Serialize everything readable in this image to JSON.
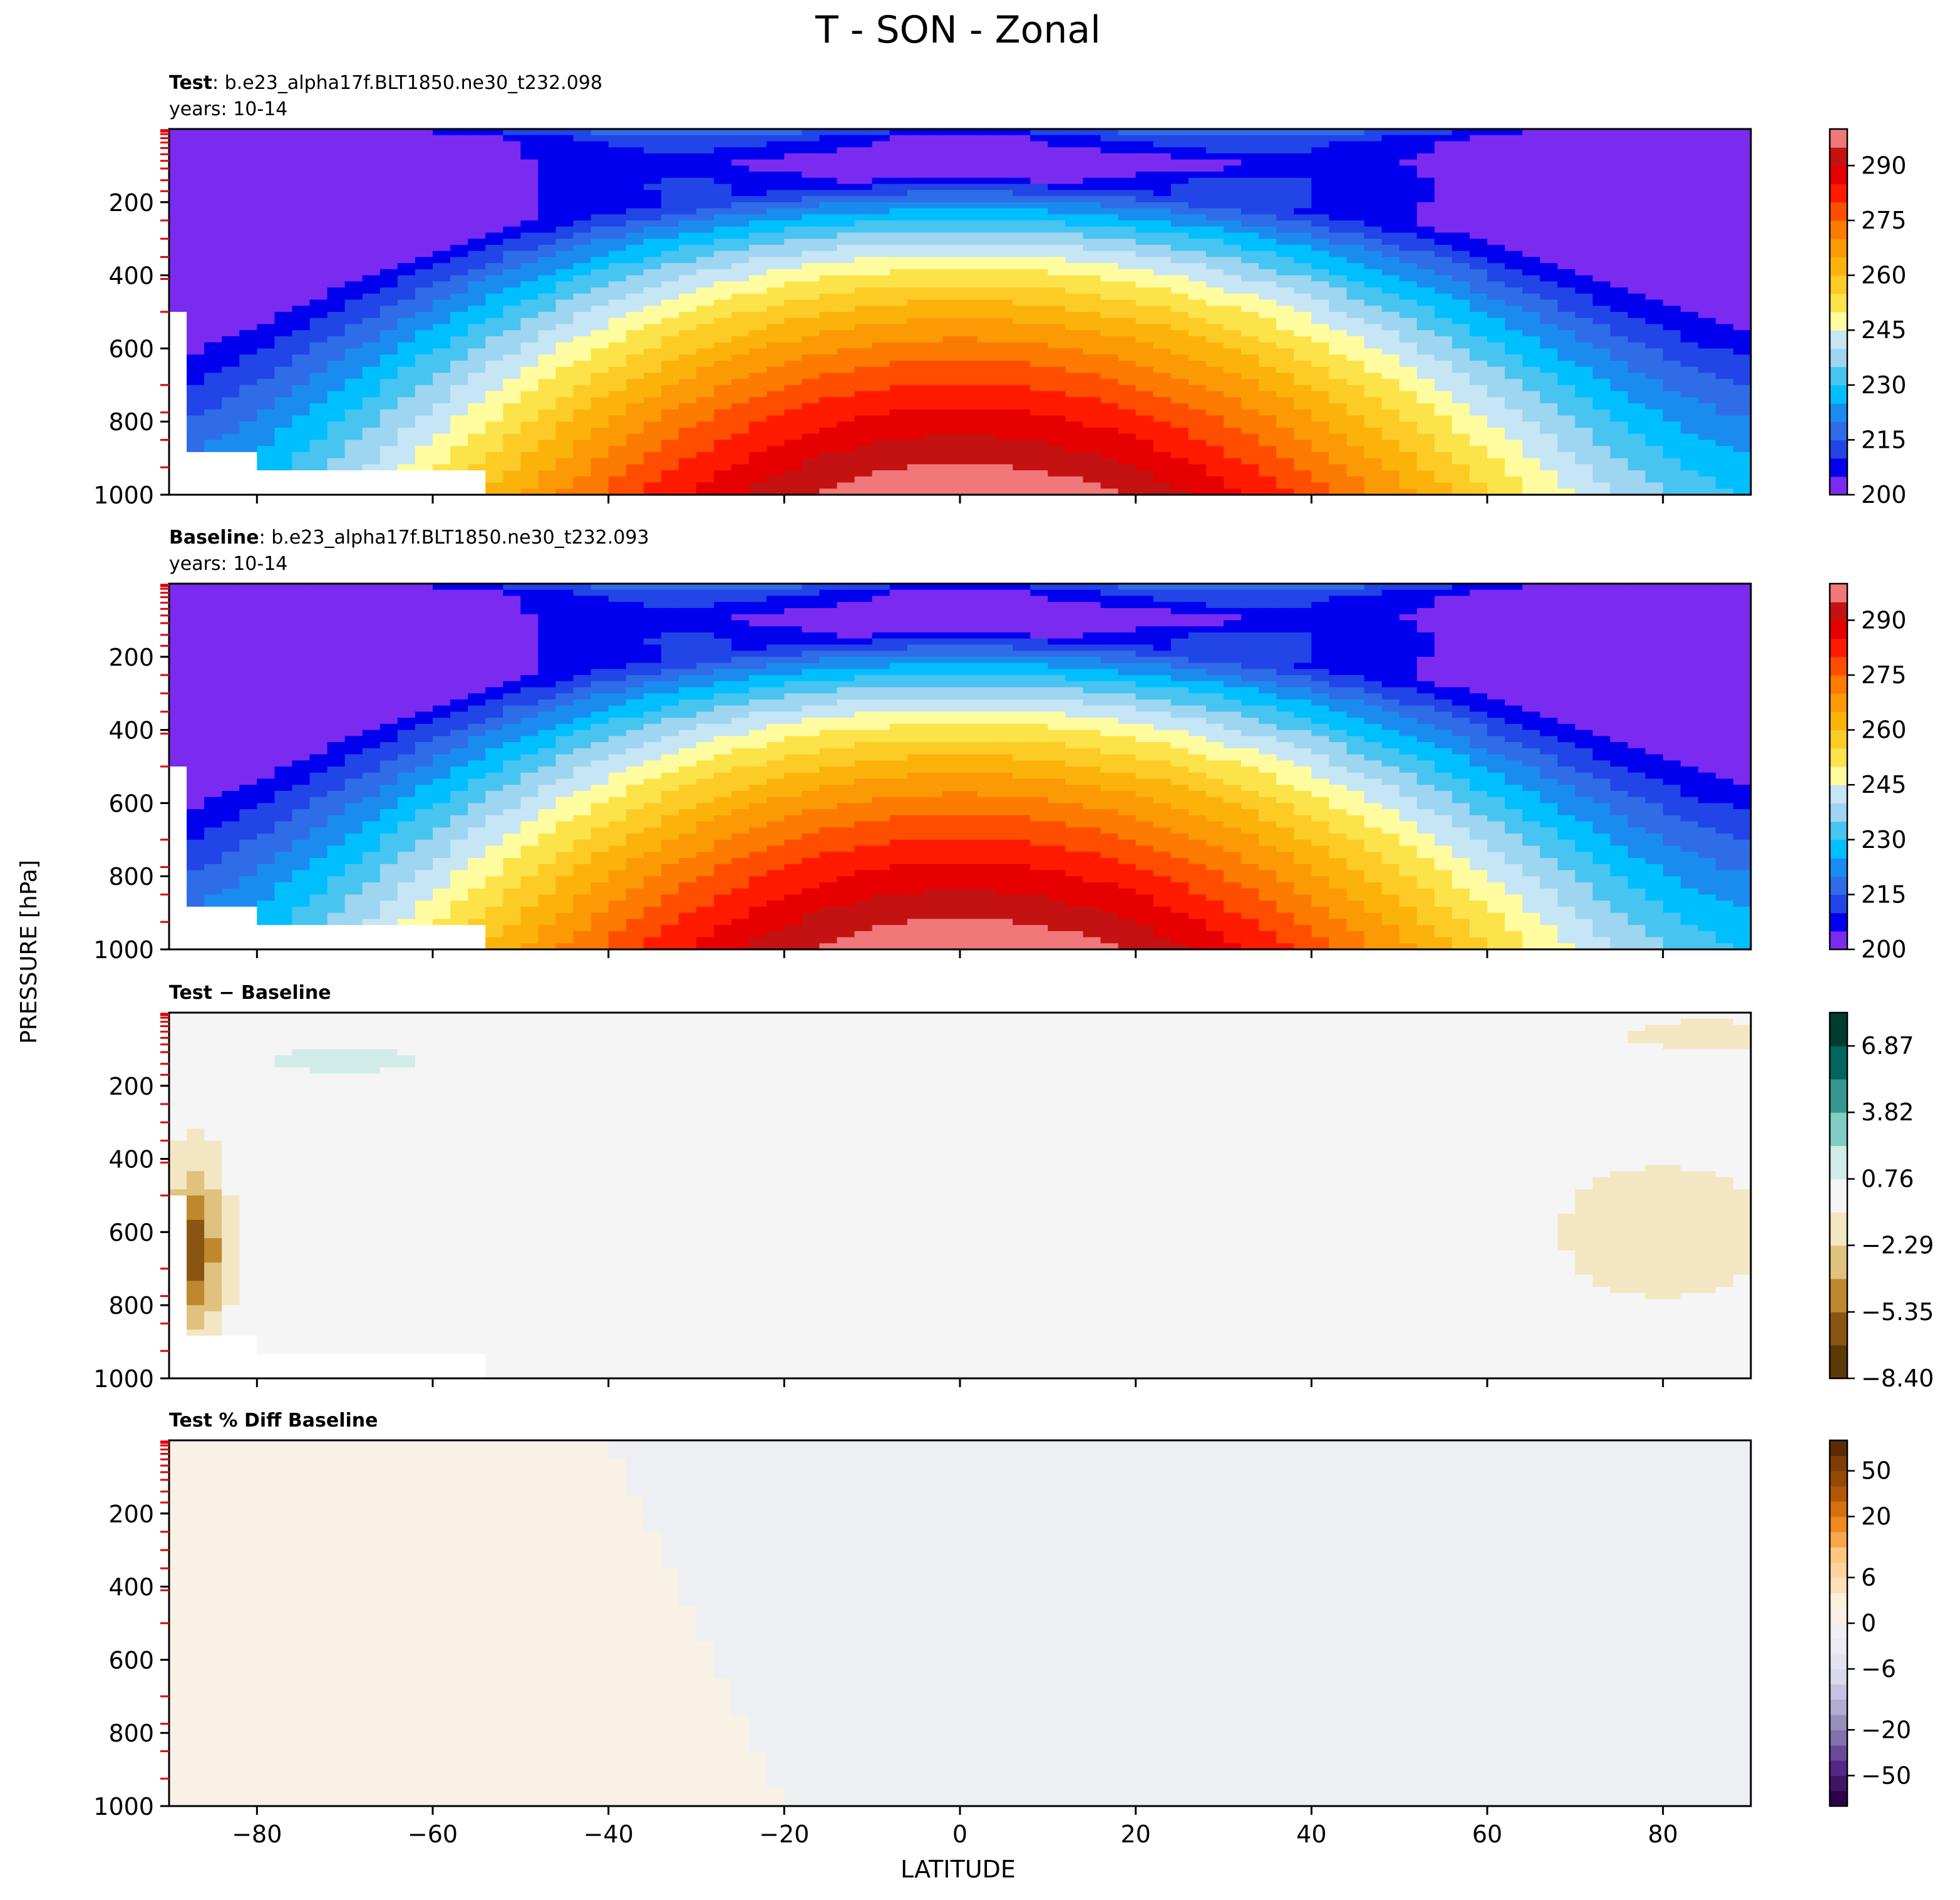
{
  "figure": {
    "title": "T - SON - Zonal",
    "xlabel": "LATITUDE",
    "ylabel": "PRESSURE [hPa]"
  },
  "chart_data": [
    {
      "type": "heatmap",
      "id": "test",
      "title_bold": "Test",
      "title_rest": ": b.e23_alpha17f.BLT1850.ne30_t232.098",
      "subtitle": "years: 10-14",
      "xlim": [
        -90,
        90
      ],
      "ylim": [
        1000,
        0
      ],
      "xticks": [
        -80,
        -60,
        -40,
        -20,
        0,
        20,
        40,
        60,
        80
      ],
      "yticks": [
        200,
        400,
        600,
        800,
        1000
      ],
      "colorbar": {
        "levels": [
          200,
          205,
          210,
          215,
          220,
          225,
          230,
          235,
          240,
          245,
          250,
          255,
          260,
          265,
          270,
          275,
          280,
          285,
          290,
          295,
          300
        ],
        "ticks": [
          200,
          215,
          230,
          245,
          260,
          275,
          290
        ],
        "tick_labels": [
          "200",
          "215",
          "230",
          "245",
          "260",
          "275",
          "290"
        ],
        "colors": [
          "#7b2bf0",
          "#0000ee",
          "#2145e6",
          "#2f6ce8",
          "#1a8cf0",
          "#00bfff",
          "#48c4f0",
          "#9ed5f0",
          "#c6e5f5",
          "#fffca0",
          "#fde34a",
          "#fdcb25",
          "#fbb30c",
          "#fc9a05",
          "#fd7b00",
          "#ff4e00",
          "#ff1a00",
          "#e60000",
          "#c41212",
          "#f07878"
        ]
      },
      "field": {
        "sfc_min": 224,
        "sfc_max": 300,
        "tropopause_min": 190,
        "strat_equator": 208,
        "strat_pole_south": 195,
        "strat_pole_north": 214,
        "missing_antarctic": true
      }
    },
    {
      "type": "heatmap",
      "id": "baseline",
      "title_bold": "Baseline",
      "title_rest": ": b.e23_alpha17f.BLT1850.ne30_t232.093",
      "subtitle": "years: 10-14",
      "xlim": [
        -90,
        90
      ],
      "ylim": [
        1000,
        0
      ],
      "xticks": [
        -80,
        -60,
        -40,
        -20,
        0,
        20,
        40,
        60,
        80
      ],
      "yticks": [
        200,
        400,
        600,
        800,
        1000
      ],
      "colorbar": {
        "levels": [
          200,
          205,
          210,
          215,
          220,
          225,
          230,
          235,
          240,
          245,
          250,
          255,
          260,
          265,
          270,
          275,
          280,
          285,
          290,
          295,
          300
        ],
        "ticks": [
          200,
          215,
          230,
          245,
          260,
          275,
          290
        ],
        "tick_labels": [
          "200",
          "215",
          "230",
          "245",
          "260",
          "275",
          "290"
        ],
        "colors": [
          "#7b2bf0",
          "#0000ee",
          "#2145e6",
          "#2f6ce8",
          "#1a8cf0",
          "#00bfff",
          "#48c4f0",
          "#9ed5f0",
          "#c6e5f5",
          "#fffca0",
          "#fde34a",
          "#fdcb25",
          "#fbb30c",
          "#fc9a05",
          "#fd7b00",
          "#ff4e00",
          "#ff1a00",
          "#e60000",
          "#c41212",
          "#f07878"
        ]
      },
      "field": {
        "sfc_min": 224,
        "sfc_max": 300,
        "tropopause_min": 190,
        "strat_equator": 208,
        "strat_pole_south": 196,
        "strat_pole_north": 214,
        "missing_antarctic": true
      }
    },
    {
      "type": "heatmap",
      "id": "diff",
      "title_bold": "Test − Baseline",
      "title_rest": "",
      "subtitle": "",
      "xlim": [
        -90,
        90
      ],
      "ylim": [
        1000,
        0
      ],
      "xticks": [
        -80,
        -60,
        -40,
        -20,
        0,
        20,
        40,
        60,
        80
      ],
      "yticks": [
        200,
        400,
        600,
        800,
        1000
      ],
      "colorbar": {
        "levels": [
          -8.4,
          -6.87,
          -5.35,
          -3.82,
          -2.29,
          -0.76,
          0.76,
          2.29,
          3.82,
          5.35,
          6.87,
          8.4
        ],
        "ticks": [
          -8.4,
          -5.35,
          -2.29,
          0.76,
          3.82,
          6.87
        ],
        "tick_labels": [
          "−8.40",
          "−5.35",
          "−2.29",
          "0.76",
          "3.82",
          "6.87"
        ],
        "colors": [
          "#5c3a06",
          "#8a5512",
          "#bf872e",
          "#dfc27d",
          "#f3e6c3",
          "#f5f5f5",
          "#d1ece8",
          "#80cdc1",
          "#35978f",
          "#01665e",
          "#003c30"
        ]
      },
      "field": {
        "background": -0.1,
        "features": [
          {
            "lat": -70,
            "p": 130,
            "value": 1.2,
            "note": "upper SH high-latitude warming"
          },
          {
            "lat": 80,
            "p": 600,
            "value": -1.3,
            "note": "NH polar lower-tropospheric cooling"
          },
          {
            "lat": 85,
            "p": 60,
            "value": -1.0,
            "note": "NH polar upper cooling"
          },
          {
            "lat": -87,
            "p": 650,
            "value": -6,
            "note": "Antarctic edge"
          }
        ]
      }
    },
    {
      "type": "heatmap",
      "id": "pctdiff",
      "title_bold": "Test % Diff Baseline",
      "title_rest": "",
      "subtitle": "",
      "xlim": [
        -90,
        90
      ],
      "ylim": [
        1000,
        0
      ],
      "xticks": [
        -80,
        -60,
        -40,
        -20,
        0,
        20,
        40,
        60,
        80
      ],
      "yticks": [
        200,
        400,
        600,
        800,
        1000
      ],
      "colorbar": {
        "levels": [
          -100,
          -75,
          -50,
          -40,
          -30,
          -20,
          -15,
          -10,
          -8,
          -6,
          -4,
          -2,
          0,
          2,
          4,
          6,
          8,
          10,
          15,
          20,
          30,
          40,
          50,
          75,
          100
        ],
        "ticks": [
          -50,
          -20,
          -6,
          0,
          6,
          20,
          50
        ],
        "tick_labels": [
          "−50",
          "−20",
          "−6",
          "0",
          "6",
          "20",
          "50"
        ],
        "colors": [
          "#2d004b",
          "#3f1666",
          "#542788",
          "#6a4a9a",
          "#8073ac",
          "#998fbd",
          "#b2abd2",
          "#c7c2e0",
          "#d8daeb",
          "#e3e3ef",
          "#ebebf2",
          "#eeeff3",
          "#f7f1e6",
          "#fbf0dd",
          "#fde0b6",
          "#fdd49e",
          "#fdc77f",
          "#f8a748",
          "#ee8a1e",
          "#d4700d",
          "#b35806",
          "#934a06",
          "#7f3b08",
          "#5c2b06"
        ]
      },
      "field": {
        "positive_region": "south of ~40S",
        "value_pos": 0.5,
        "value_neg": -0.5
      }
    }
  ]
}
